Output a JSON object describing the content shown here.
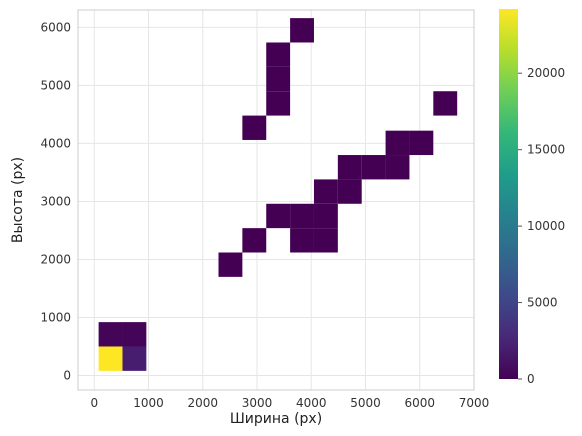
{
  "chart_data": {
    "type": "heatmap",
    "title": "",
    "xlabel": "Ширина (px)",
    "ylabel": "Высота (px)",
    "xlim": [
      -300,
      7000
    ],
    "ylim": [
      -250,
      6300
    ],
    "xticks": [
      0,
      1000,
      2000,
      3000,
      4000,
      5000,
      6000,
      7000
    ],
    "yticks": [
      0,
      1000,
      2000,
      3000,
      4000,
      5000,
      6000
    ],
    "bin_size": [
      440,
      420
    ],
    "grid": true,
    "colorbar": {
      "colormap": "viridis",
      "min": 0,
      "max": 24200,
      "ticks": [
        0,
        5000,
        10000,
        15000,
        20000
      ]
    },
    "bins": [
      {
        "x": 80,
        "y": 80,
        "count": 24200
      },
      {
        "x": 520,
        "y": 80,
        "count": 2000
      },
      {
        "x": 80,
        "y": 500,
        "count": 300
      },
      {
        "x": 520,
        "y": 500,
        "count": 200
      },
      {
        "x": 2290,
        "y": 1700,
        "count": 1
      },
      {
        "x": 2730,
        "y": 2120,
        "count": 1
      },
      {
        "x": 3170,
        "y": 2540,
        "count": 1
      },
      {
        "x": 3610,
        "y": 2540,
        "count": 1
      },
      {
        "x": 4050,
        "y": 2540,
        "count": 1
      },
      {
        "x": 3610,
        "y": 2120,
        "count": 1
      },
      {
        "x": 4050,
        "y": 2120,
        "count": 1
      },
      {
        "x": 4050,
        "y": 2960,
        "count": 1
      },
      {
        "x": 4490,
        "y": 2960,
        "count": 1
      },
      {
        "x": 4490,
        "y": 3380,
        "count": 1
      },
      {
        "x": 4930,
        "y": 3380,
        "count": 1
      },
      {
        "x": 5370,
        "y": 3380,
        "count": 1
      },
      {
        "x": 5370,
        "y": 3800,
        "count": 1
      },
      {
        "x": 5810,
        "y": 3800,
        "count": 1
      },
      {
        "x": 2730,
        "y": 4060,
        "count": 1
      },
      {
        "x": 3170,
        "y": 4480,
        "count": 1
      },
      {
        "x": 3170,
        "y": 4900,
        "count": 1
      },
      {
        "x": 3170,
        "y": 5320,
        "count": 1
      },
      {
        "x": 3610,
        "y": 5740,
        "count": 1
      },
      {
        "x": 6250,
        "y": 4480,
        "count": 1
      }
    ]
  }
}
